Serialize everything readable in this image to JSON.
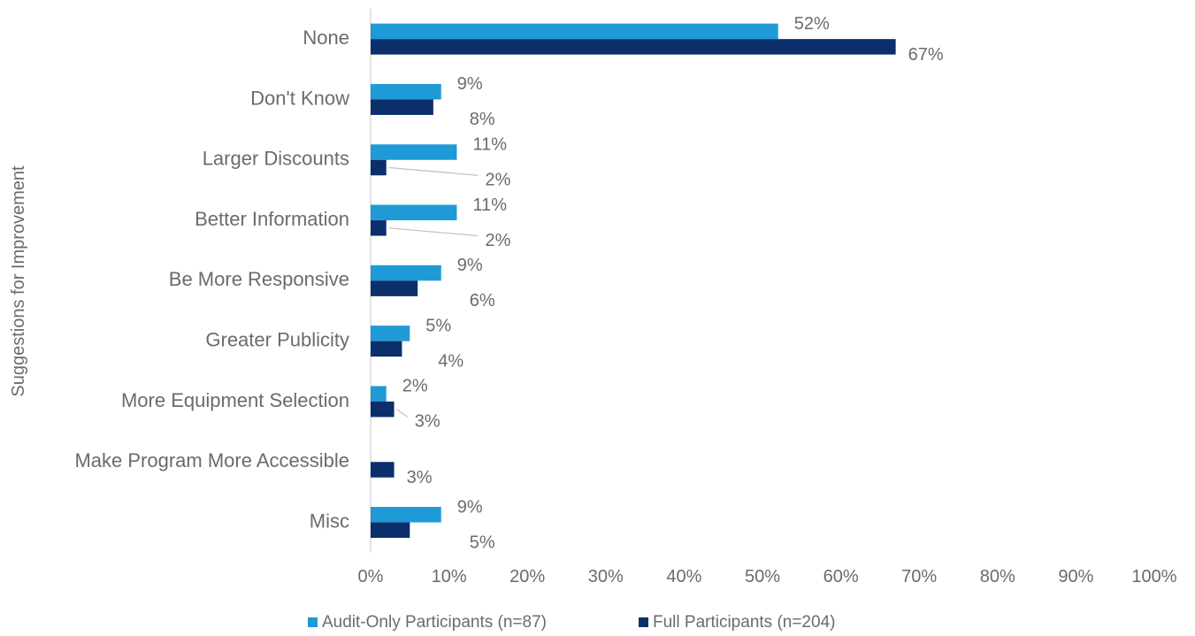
{
  "chart_data": {
    "type": "bar",
    "orientation": "horizontal",
    "title": "",
    "xlabel": "",
    "ylabel": "Suggestions for Improvement",
    "categories": [
      "None",
      "Don't Know",
      "Larger Discounts",
      "Better Information",
      "Be More Responsive",
      "Greater Publicity",
      "More Equipment Selection",
      "Make Program More Accessible",
      "Misc"
    ],
    "series": [
      {
        "name": "Audit-Only Participants (n=87)",
        "color": "#1f9ad6",
        "values": [
          52,
          9,
          11,
          11,
          9,
          5,
          2,
          null,
          9
        ],
        "labels": [
          "52%",
          "9%",
          "11%",
          "11%",
          "9%",
          "5%",
          "2%",
          "",
          "9%"
        ]
      },
      {
        "name": "Full Participants (n=204)",
        "color": "#0b2f6b",
        "values": [
          67,
          8,
          2,
          2,
          6,
          4,
          3,
          3,
          5
        ],
        "labels": [
          "67%",
          "8%",
          "2%",
          "2%",
          "6%",
          "4%",
          "3%",
          "3%",
          "5%"
        ]
      }
    ],
    "xlim": [
      0,
      100
    ],
    "xticks": [
      "0%",
      "10%",
      "20%",
      "30%",
      "40%",
      "50%",
      "60%",
      "70%",
      "80%",
      "90%",
      "100%"
    ],
    "grid": false,
    "legend_position": "bottom"
  }
}
